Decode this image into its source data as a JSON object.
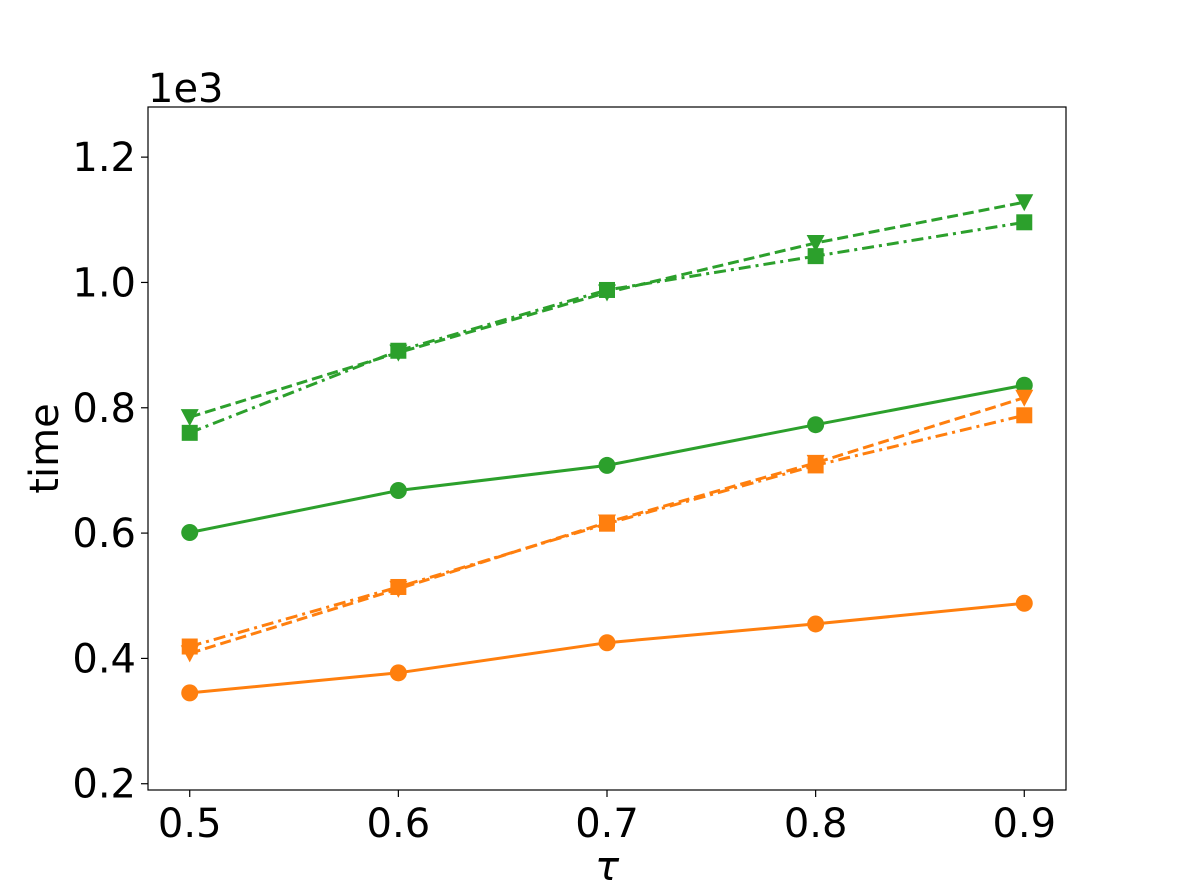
{
  "chart_data": {
    "type": "line",
    "title": "",
    "xlabel": "τ",
    "ylabel": "time",
    "y_offset_label": "1e3",
    "x": [
      0.5,
      0.6,
      0.7,
      0.8,
      0.9
    ],
    "xlim": [
      0.48,
      0.92
    ],
    "ylim": [
      0.19,
      1.28
    ],
    "x_ticks": [
      0.5,
      0.6,
      0.7,
      0.8,
      0.9
    ],
    "x_tick_labels": [
      "0.5",
      "0.6",
      "0.7",
      "0.8",
      "0.9"
    ],
    "y_ticks": [
      0.2,
      0.4,
      0.6,
      0.8,
      1.0,
      1.2
    ],
    "y_tick_labels": [
      "0.2",
      "0.4",
      "0.6",
      "0.8",
      "1.0",
      "1.2"
    ],
    "grid": false,
    "legend": false,
    "series": [
      {
        "color": "#2ca02c",
        "line_style": "solid",
        "marker": "circle",
        "values": [
          0.601,
          0.668,
          0.708,
          0.773,
          0.836
        ]
      },
      {
        "color": "#2ca02c",
        "line_style": "dashed",
        "marker": "triangle-down",
        "values": [
          0.785,
          0.888,
          0.984,
          1.063,
          1.128
        ]
      },
      {
        "color": "#2ca02c",
        "line_style": "dashdot",
        "marker": "square",
        "values": [
          0.76,
          0.891,
          0.988,
          1.042,
          1.096
        ]
      },
      {
        "color": "#ff7f0e",
        "line_style": "solid",
        "marker": "circle",
        "values": [
          0.345,
          0.377,
          0.425,
          0.455,
          0.488
        ]
      },
      {
        "color": "#ff7f0e",
        "line_style": "dashed",
        "marker": "triangle-down",
        "values": [
          0.408,
          0.511,
          0.617,
          0.712,
          0.816
        ]
      },
      {
        "color": "#ff7f0e",
        "line_style": "dashdot",
        "marker": "square",
        "values": [
          0.419,
          0.514,
          0.615,
          0.708,
          0.788
        ]
      }
    ]
  }
}
